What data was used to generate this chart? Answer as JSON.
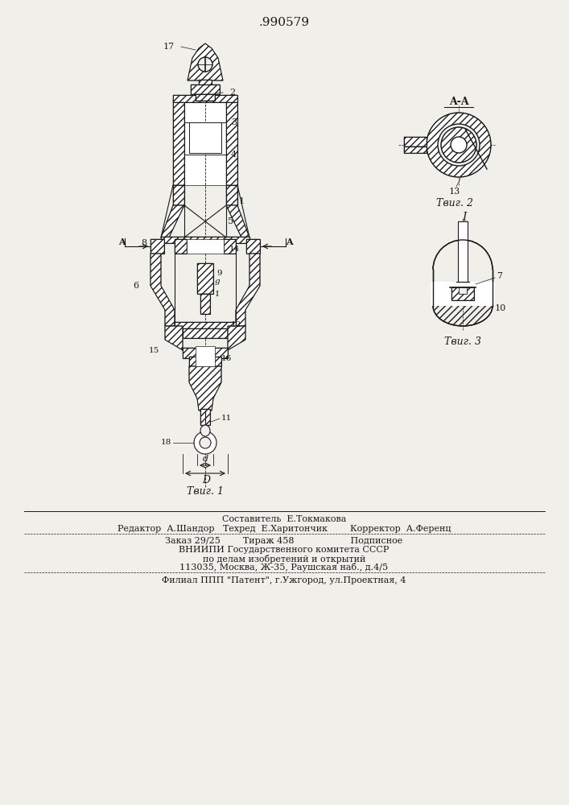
{
  "patent_number": ".990579",
  "fig1_caption": "Τвиг. 1",
  "fig2_caption": "Τвиг. 2",
  "fig3_caption": "Τвиг. 3",
  "bg_color": "#f0efea",
  "line_color": "#1a1a1a",
  "footer_lines": [
    "Составитель  Е.Токмакова",
    "Редактор  А.Шандор   Техред  Е.Харитончик        Корректор  А.Ференц",
    "Заказ 29/25        Тираж 458                    Подписное",
    "ВНИИПИ Государственного комитета СССР",
    "по делам изобретений и открытий",
    "113035, Москва, Ж-35, Раушская наб., д.4/5",
    "Филиал ППП \"Патент\", г.Ужгород, ул.Проектная, 4"
  ]
}
